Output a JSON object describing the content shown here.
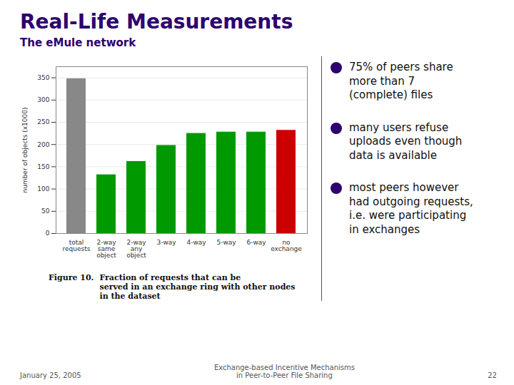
{
  "chart_data": {
    "type": "bar",
    "title": "Real-Life Measurements",
    "subtitle": "The eMule network",
    "categories": [
      "total\nrequests",
      "2-way\nsame\nobject",
      "2-way\nany\nobject",
      "3-way",
      "4-way",
      "5-way",
      "6-way",
      "no\nexchange"
    ],
    "values": [
      348,
      132,
      162,
      198,
      225,
      228,
      228,
      232
    ],
    "colors": [
      "#888888",
      "#009900",
      "#009900",
      "#009900",
      "#009900",
      "#009900",
      "#009900",
      "#cc0000"
    ],
    "ylabel": "number of objects (x1000)",
    "ylim": [
      0,
      375
    ],
    "yticks": [
      0,
      50,
      100,
      150,
      200,
      250,
      300,
      350
    ],
    "grid": true,
    "annotations": [
      "Figure 10.",
      "Fraction of requests that can be\nserved in an exchange ring with other nodes\nin the dataset",
      "75% of peers share\nmore than 7\n(complete) files",
      "many users refuse\nuploads even though\ndata is available",
      "most peers however\nhad outgoing requests,\ni.e. were participating\nin exchanges",
      "January 25, 2005",
      "Exchange-based Incentive Mechanisms\nin Peer-to-Peer File Sharing",
      "22"
    ]
  }
}
